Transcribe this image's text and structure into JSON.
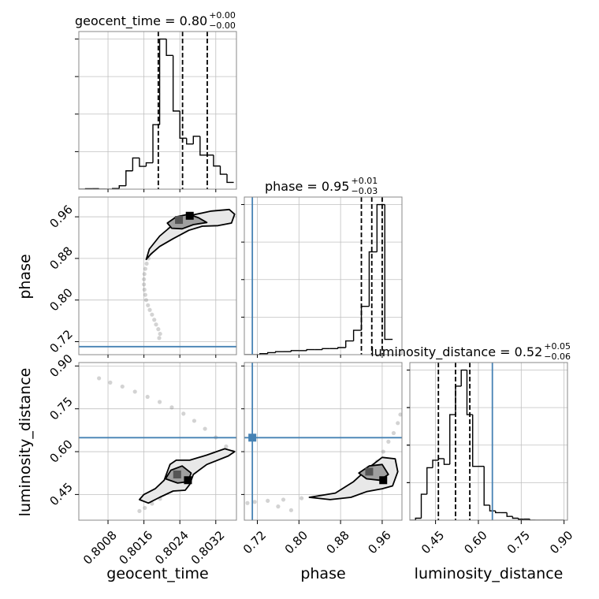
{
  "chart_data": {
    "type": "corner",
    "parameters": [
      "geocent_time",
      "phase",
      "luminosity_distance"
    ],
    "injection": {
      "phase": 0.7104,
      "luminosity_distance": 0.649
    },
    "colors": {
      "injection": "#4682b4",
      "hist": "#000000",
      "grid": "#c0c0c0",
      "samples": "#808080"
    },
    "ranges": {
      "geocent_time": [
        0.80015,
        0.80366
      ],
      "phase": [
        0.695,
        0.998
      ],
      "luminosity_distance": [
        0.36,
        0.912
      ]
    },
    "axis_labels": {
      "geocent_time": "geocent_time",
      "phase": "phase",
      "luminosity_distance": "luminosity_distance"
    },
    "ticks": {
      "geocent_time": {
        "values": [
          0.8008,
          0.8016,
          0.8024,
          0.8032
        ],
        "labels": [
          "0.8008",
          "0.8016",
          "0.8024",
          "0.8032"
        ]
      },
      "phase": {
        "values": [
          0.72,
          0.8,
          0.88,
          0.96
        ],
        "labels": [
          "0.72",
          "0.80",
          "0.88",
          "0.96"
        ]
      },
      "luminosity_distance": {
        "values": [
          0.45,
          0.6,
          0.75,
          0.9
        ],
        "labels": [
          "0.45",
          "0.60",
          "0.75",
          "0.90"
        ]
      }
    },
    "titles": [
      {
        "param": "geocent_time",
        "text": "geocent_time = 0.80",
        "sup": "+0.00",
        "sub": "−0.00"
      },
      {
        "param": "phase",
        "text": "phase = 0.95",
        "sup": "+0.01",
        "sub": "−0.03"
      },
      {
        "param": "luminosity_distance",
        "text": "luminosity_distance = 0.52",
        "sup": "+0.05",
        "sub": "−0.06"
      }
    ],
    "histograms": {
      "geocent_time": {
        "edges": [
          0.80015,
          0.8003,
          0.80045,
          0.8006,
          0.80075,
          0.8009,
          0.80105,
          0.8012,
          0.80135,
          0.8015,
          0.80165,
          0.8018,
          0.80195,
          0.8021,
          0.80225,
          0.8024,
          0.80255,
          0.8027,
          0.80285,
          0.803,
          0.80315,
          0.8033,
          0.80345,
          0.8036
        ],
        "counts": [
          0,
          0.3,
          0.3,
          0,
          0,
          0.4,
          2.1,
          11.4,
          19.4,
          14.2,
          16.4,
          40.1,
          93.4,
          83.2,
          48.6,
          31.7,
          28.1,
          32.9,
          21.2,
          21.2,
          14.4,
          9.3,
          4.2
        ],
        "quantiles": [
          0.80192,
          0.80246,
          0.80301
        ]
      },
      "phase": {
        "edges": [
          0.695,
          0.71,
          0.725,
          0.74,
          0.755,
          0.77,
          0.785,
          0.8,
          0.815,
          0.83,
          0.845,
          0.86,
          0.875,
          0.89,
          0.905,
          0.92,
          0.935,
          0.95,
          0.965,
          0.98
        ],
        "counts": [
          0,
          0,
          1.1,
          2.2,
          3.3,
          3.3,
          4.4,
          4.4,
          5.5,
          5.5,
          6.6,
          6.6,
          7.7,
          14.9,
          26.5,
          52.5,
          111.6,
          163.0,
          16.6
        ],
        "quantiles": [
          0.92,
          0.94,
          0.96
        ]
      },
      "luminosity_distance": {
        "edges": [
          0.36,
          0.38,
          0.4,
          0.42,
          0.44,
          0.46,
          0.48,
          0.5,
          0.52,
          0.54,
          0.56,
          0.58,
          0.6,
          0.62,
          0.64,
          0.66,
          0.68,
          0.7,
          0.72,
          0.74,
          0.76,
          0.78,
          0.8,
          0.82,
          0.84,
          0.86,
          0.88,
          0.9
        ],
        "counts": [
          0,
          1.1,
          14.5,
          29.3,
          33.5,
          34.4,
          31.2,
          59.0,
          74.9,
          83.9,
          59.0,
          30.1,
          30.1,
          8.4,
          5.2,
          4.2,
          4.2,
          2.1,
          1.1,
          0.6,
          0.6,
          0,
          0,
          0,
          0,
          0,
          0
        ],
        "quantiles": [
          0.46,
          0.52,
          0.57
        ]
      }
    },
    "scatter": {
      "phase_vs_geocent_time": [
        [
          0.80194,
          0.727
        ],
        [
          0.80196,
          0.735
        ],
        [
          0.80192,
          0.744
        ],
        [
          0.80187,
          0.753
        ],
        [
          0.80183,
          0.762
        ],
        [
          0.80178,
          0.772
        ],
        [
          0.80173,
          0.781
        ],
        [
          0.80169,
          0.79
        ],
        [
          0.80165,
          0.8
        ],
        [
          0.80163,
          0.81
        ],
        [
          0.80161,
          0.82
        ],
        [
          0.8016,
          0.83
        ],
        [
          0.8016,
          0.84
        ],
        [
          0.80161,
          0.85
        ],
        [
          0.80163,
          0.86
        ],
        [
          0.80166,
          0.87
        ],
        [
          0.8017,
          0.88
        ],
        [
          0.80175,
          0.89
        ],
        [
          0.80182,
          0.9
        ],
        [
          0.80189,
          0.91
        ],
        [
          0.80197,
          0.919
        ],
        [
          0.80206,
          0.928
        ],
        [
          0.80216,
          0.937
        ],
        [
          0.80226,
          0.944
        ],
        [
          0.80236,
          0.95
        ],
        [
          0.80246,
          0.955
        ],
        [
          0.80258,
          0.958
        ],
        [
          0.8027,
          0.96
        ],
        [
          0.80284,
          0.961
        ],
        [
          0.803,
          0.962
        ],
        [
          0.80318,
          0.963
        ],
        [
          0.80336,
          0.965
        ],
        [
          0.80352,
          0.967
        ]
      ],
      "luminosity_distance_vs_geocent_time": [
        [
          0.8006,
          0.857
        ],
        [
          0.80085,
          0.842
        ],
        [
          0.80112,
          0.828
        ],
        [
          0.8014,
          0.81
        ],
        [
          0.80168,
          0.792
        ],
        [
          0.80195,
          0.774
        ],
        [
          0.80222,
          0.755
        ],
        [
          0.80248,
          0.733
        ],
        [
          0.80272,
          0.708
        ],
        [
          0.80296,
          0.68
        ],
        [
          0.8032,
          0.65
        ],
        [
          0.80343,
          0.618
        ],
        [
          0.80358,
          0.6
        ],
        [
          0.80222,
          0.47
        ],
        [
          0.80196,
          0.435
        ],
        [
          0.80178,
          0.418
        ],
        [
          0.80162,
          0.403
        ],
        [
          0.8015,
          0.392
        ]
      ],
      "luminosity_distance_vs_phase": [
        [
          0.995,
          0.73
        ],
        [
          0.99,
          0.7
        ],
        [
          0.982,
          0.665
        ],
        [
          0.972,
          0.635
        ],
        [
          0.962,
          0.6
        ],
        [
          0.95,
          0.565
        ],
        [
          0.935,
          0.53
        ],
        [
          0.918,
          0.49
        ],
        [
          0.895,
          0.462
        ],
        [
          0.87,
          0.45
        ],
        [
          0.84,
          0.443
        ],
        [
          0.805,
          0.437
        ],
        [
          0.77,
          0.432
        ],
        [
          0.74,
          0.428
        ],
        [
          0.715,
          0.424
        ],
        [
          0.701,
          0.42
        ],
        [
          0.76,
          0.408
        ],
        [
          0.785,
          0.395
        ]
      ]
    },
    "contours": {
      "phase_vs_geocent_time": [
        [
          [
            0.80165,
            0.878
          ],
          [
            0.80172,
            0.898
          ],
          [
            0.80195,
            0.923
          ],
          [
            0.80225,
            0.945
          ],
          [
            0.8026,
            0.962
          ],
          [
            0.8031,
            0.971
          ],
          [
            0.8035,
            0.974
          ],
          [
            0.80362,
            0.965
          ],
          [
            0.80355,
            0.948
          ],
          [
            0.80325,
            0.943
          ],
          [
            0.8029,
            0.942
          ],
          [
            0.8026,
            0.934
          ],
          [
            0.80225,
            0.918
          ],
          [
            0.80195,
            0.903
          ],
          [
            0.80175,
            0.888
          ]
        ],
        [
          [
            0.80212,
            0.948
          ],
          [
            0.80232,
            0.96
          ],
          [
            0.8026,
            0.965
          ],
          [
            0.80282,
            0.958
          ],
          [
            0.803,
            0.949
          ],
          [
            0.8027,
            0.945
          ],
          [
            0.80245,
            0.937
          ],
          [
            0.80222,
            0.938
          ]
        ]
      ],
      "luminosity_distance_vs_geocent_time": [
        [
          [
            0.8015,
            0.432
          ],
          [
            0.8016,
            0.45
          ],
          [
            0.80185,
            0.47
          ],
          [
            0.80205,
            0.5
          ],
          [
            0.80218,
            0.555
          ],
          [
            0.80232,
            0.57
          ],
          [
            0.80262,
            0.57
          ],
          [
            0.803,
            0.588
          ],
          [
            0.8034,
            0.61
          ],
          [
            0.80362,
            0.6
          ],
          [
            0.80348,
            0.585
          ],
          [
            0.803,
            0.555
          ],
          [
            0.8027,
            0.52
          ],
          [
            0.80262,
            0.485
          ],
          [
            0.80252,
            0.465
          ],
          [
            0.80225,
            0.462
          ],
          [
            0.80195,
            0.44
          ],
          [
            0.8017,
            0.42
          ]
        ],
        [
          [
            0.80208,
            0.505
          ],
          [
            0.8022,
            0.535
          ],
          [
            0.80245,
            0.55
          ],
          [
            0.80265,
            0.525
          ],
          [
            0.80258,
            0.495
          ],
          [
            0.80235,
            0.49
          ]
        ]
      ],
      "luminosity_distance_vs_phase": [
        [
          [
            0.82,
            0.44
          ],
          [
            0.87,
            0.455
          ],
          [
            0.905,
            0.495
          ],
          [
            0.935,
            0.545
          ],
          [
            0.96,
            0.58
          ],
          [
            0.985,
            0.575
          ],
          [
            0.99,
            0.53
          ],
          [
            0.98,
            0.48
          ],
          [
            0.96,
            0.47
          ],
          [
            0.93,
            0.46
          ],
          [
            0.9,
            0.44
          ],
          [
            0.86,
            0.432
          ]
        ],
        [
          [
            0.915,
            0.525
          ],
          [
            0.935,
            0.55
          ],
          [
            0.96,
            0.555
          ],
          [
            0.972,
            0.52
          ],
          [
            0.955,
            0.5
          ],
          [
            0.93,
            0.505
          ]
        ]
      ]
    },
    "density_peaks": {
      "phase_vs_geocent_time": [
        [
          0.80238,
          0.954
        ],
        [
          0.80262,
          0.962
        ]
      ],
      "luminosity_distance_vs_geocent_time": [
        [
          0.80234,
          0.52
        ],
        [
          0.80258,
          0.5
        ]
      ],
      "luminosity_distance_vs_phase": [
        [
          0.935,
          0.53
        ],
        [
          0.962,
          0.5
        ]
      ]
    }
  }
}
